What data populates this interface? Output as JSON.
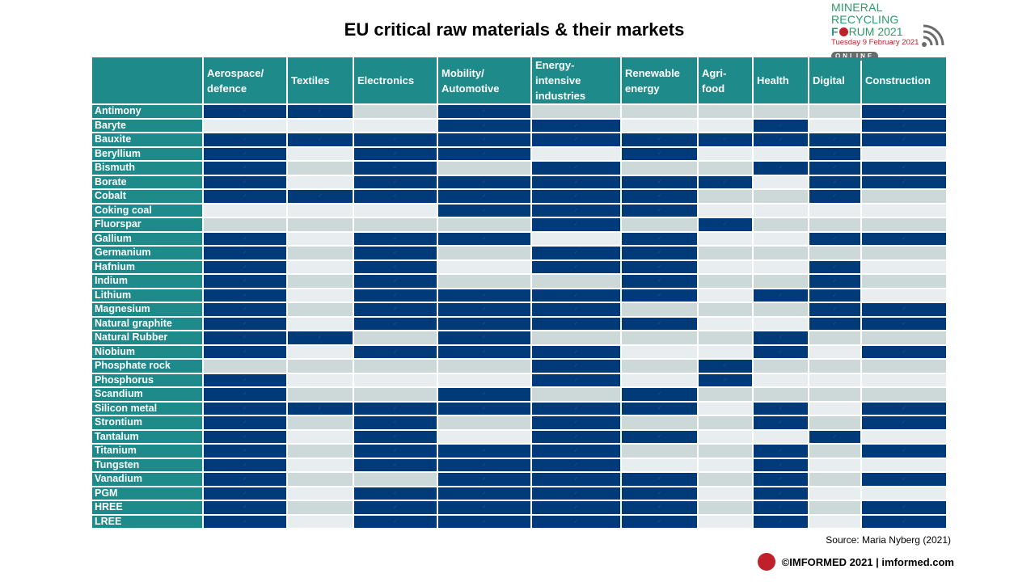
{
  "title": "EU critical raw materials & their markets",
  "logo": {
    "line1": "MINERAL RECYCLING",
    "line2_a": "F",
    "line2_b": "RUM 2021",
    "line3": "Tuesday 9 February 2021",
    "line4": "ONLINE",
    "globe_icon": "globe-icon",
    "wifi_icon": "wifi-signal-icon"
  },
  "columns": [
    "Aerospace/ defence",
    "Textiles",
    "Electronics",
    "Mobility/ Automotive",
    "Energy- intensive industries",
    "Renewable energy",
    "Agri- food",
    "Health",
    "Digital",
    "Construction"
  ],
  "check_symbol": "✓",
  "colors": {
    "header": "#1f8a8a",
    "used": "#003a78",
    "unused_a": "#cdd9d9",
    "unused_b": "#e8eef0"
  },
  "rows": [
    {
      "name": "Antimony",
      "cells": [
        1,
        1,
        0,
        1,
        0,
        0,
        0,
        0,
        0,
        1
      ]
    },
    {
      "name": "Baryte",
      "cells": [
        0,
        0,
        0,
        1,
        1,
        0,
        0,
        1,
        0,
        1
      ]
    },
    {
      "name": "Bauxite",
      "cells": [
        1,
        1,
        1,
        1,
        1,
        1,
        1,
        1,
        1,
        1
      ]
    },
    {
      "name": "Beryllium",
      "cells": [
        1,
        0,
        1,
        1,
        0,
        1,
        0,
        0,
        1,
        0
      ]
    },
    {
      "name": "Bismuth",
      "cells": [
        1,
        0,
        1,
        0,
        1,
        0,
        0,
        1,
        1,
        1
      ]
    },
    {
      "name": "Borate",
      "cells": [
        1,
        0,
        1,
        1,
        1,
        1,
        1,
        0,
        1,
        1
      ]
    },
    {
      "name": "Cobalt",
      "cells": [
        1,
        1,
        1,
        1,
        1,
        1,
        0,
        0,
        1,
        0
      ]
    },
    {
      "name": "Coking coal",
      "cells": [
        0,
        0,
        0,
        1,
        1,
        1,
        0,
        0,
        0,
        0
      ]
    },
    {
      "name": "Fluorspar",
      "cells": [
        0,
        0,
        0,
        0,
        1,
        0,
        1,
        0,
        0,
        0
      ]
    },
    {
      "name": "Gallium",
      "cells": [
        1,
        0,
        1,
        1,
        0,
        1,
        0,
        0,
        1,
        1
      ]
    },
    {
      "name": "Germanium",
      "cells": [
        1,
        0,
        1,
        0,
        1,
        1,
        0,
        0,
        0,
        0
      ]
    },
    {
      "name": "Hafnium",
      "cells": [
        1,
        0,
        1,
        0,
        1,
        1,
        0,
        0,
        1,
        0
      ]
    },
    {
      "name": "Indium",
      "cells": [
        1,
        0,
        1,
        0,
        0,
        1,
        0,
        0,
        1,
        0
      ]
    },
    {
      "name": "Lithium",
      "cells": [
        1,
        0,
        1,
        1,
        1,
        1,
        0,
        1,
        1,
        0
      ]
    },
    {
      "name": "Magnesium",
      "cells": [
        1,
        0,
        1,
        1,
        1,
        0,
        0,
        0,
        1,
        1
      ]
    },
    {
      "name": "Natural graphite",
      "cells": [
        1,
        0,
        1,
        1,
        1,
        1,
        0,
        0,
        1,
        1
      ]
    },
    {
      "name": "Natural Rubber",
      "cells": [
        1,
        1,
        0,
        1,
        0,
        0,
        0,
        1,
        0,
        0
      ]
    },
    {
      "name": "Niobium",
      "cells": [
        1,
        0,
        1,
        1,
        1,
        0,
        0,
        1,
        0,
        1
      ]
    },
    {
      "name": "Phosphate rock",
      "cells": [
        0,
        0,
        0,
        0,
        1,
        0,
        1,
        0,
        0,
        0
      ]
    },
    {
      "name": "Phosphorus",
      "cells": [
        1,
        0,
        0,
        0,
        1,
        0,
        1,
        0,
        0,
        0
      ]
    },
    {
      "name": "Scandium",
      "cells": [
        1,
        0,
        0,
        1,
        0,
        1,
        0,
        0,
        0,
        0
      ]
    },
    {
      "name": "Silicon metal",
      "cells": [
        1,
        1,
        1,
        1,
        1,
        1,
        0,
        1,
        0,
        1
      ]
    },
    {
      "name": "Strontium",
      "cells": [
        1,
        0,
        1,
        0,
        1,
        0,
        0,
        1,
        0,
        1
      ]
    },
    {
      "name": "Tantalum",
      "cells": [
        1,
        0,
        1,
        0,
        1,
        1,
        0,
        0,
        1,
        0
      ]
    },
    {
      "name": "Titanium",
      "cells": [
        1,
        0,
        1,
        1,
        1,
        0,
        0,
        1,
        0,
        1
      ]
    },
    {
      "name": "Tungsten",
      "cells": [
        1,
        0,
        1,
        1,
        1,
        0,
        0,
        1,
        0,
        0
      ]
    },
    {
      "name": "Vanadium",
      "cells": [
        1,
        0,
        0,
        1,
        1,
        1,
        0,
        1,
        0,
        1
      ]
    },
    {
      "name": "PGM",
      "cells": [
        1,
        0,
        1,
        1,
        1,
        1,
        0,
        1,
        0,
        0
      ]
    },
    {
      "name": "HREE",
      "cells": [
        1,
        0,
        1,
        1,
        1,
        1,
        0,
        1,
        0,
        1
      ]
    },
    {
      "name": "LREE",
      "cells": [
        1,
        0,
        1,
        1,
        1,
        1,
        0,
        1,
        0,
        1
      ]
    }
  ],
  "source": "Source: Maria Nyberg (2021)",
  "footer": "©IMFORMED  2021  | imformed.com"
}
